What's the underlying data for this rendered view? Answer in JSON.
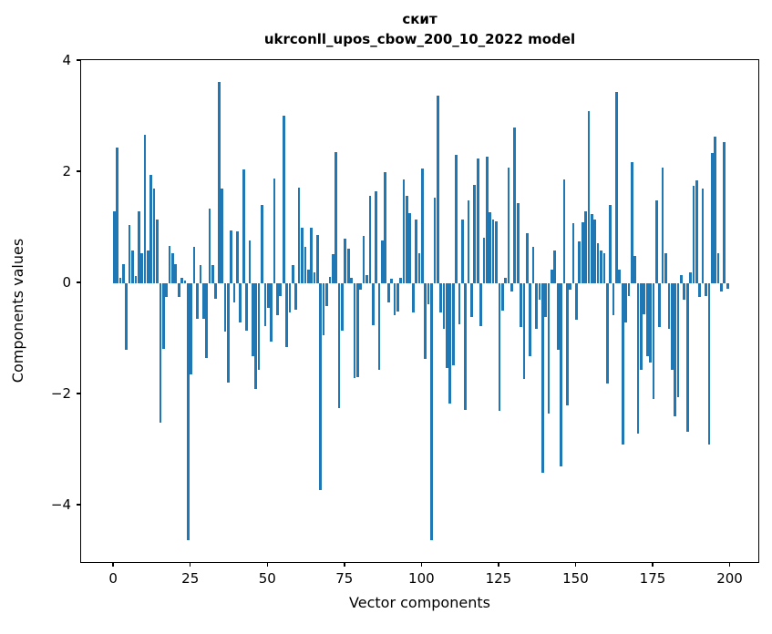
{
  "figure": {
    "title_line1": "скит",
    "title_line2": "ukrconll_upos_cbow_200_10_2022 model",
    "xlabel": "Vector components",
    "ylabel": "Components values"
  },
  "chart_data": {
    "type": "bar",
    "title": "скит\nukrconll_upos_cbow_200_10_2022 model",
    "xlabel": "Vector components",
    "ylabel": "Components values",
    "legend": "none",
    "grid": false,
    "bar_color": "#1f77b4",
    "bar_width_units": 0.8,
    "n_bars": 200,
    "xlim": [
      -10.7,
      209.6
    ],
    "ylim": [
      -5.05,
      4.02
    ],
    "xticks": {
      "values": [
        0,
        25,
        50,
        75,
        100,
        125,
        150,
        175,
        200
      ],
      "labels": [
        "0",
        "25",
        "50",
        "75",
        "100",
        "125",
        "150",
        "175",
        "200"
      ]
    },
    "yticks": {
      "values": [
        4,
        2,
        0,
        -2,
        -4
      ],
      "labels": [
        "4",
        "2",
        "0",
        "−2",
        "−4"
      ]
    },
    "values": [
      1.3,
      2.45,
      0.1,
      0.35,
      -1.2,
      1.05,
      0.6,
      0.13,
      1.3,
      0.55,
      2.67,
      0.6,
      1.95,
      1.7,
      1.15,
      -2.5,
      -1.18,
      -0.25,
      0.67,
      0.55,
      0.35,
      -0.25,
      0.1,
      0.05,
      -4.62,
      -1.64,
      0.65,
      -0.63,
      0.33,
      -0.63,
      -1.34,
      1.34,
      0.33,
      -0.27,
      3.63,
      1.7,
      -0.86,
      -1.78,
      0.96,
      -0.35,
      0.94,
      -0.7,
      2.05,
      -0.85,
      0.78,
      -1.31,
      -1.9,
      -1.55,
      1.42,
      -0.77,
      -0.44,
      -1.04,
      1.89,
      -0.57,
      -0.22,
      3.02,
      -1.15,
      -0.52,
      0.33,
      -0.48,
      1.72,
      1.0,
      0.65,
      0.25,
      1.0,
      0.2,
      0.87,
      -3.72,
      -0.93,
      -0.41,
      0.12,
      0.52,
      2.36,
      -2.24,
      -0.85,
      0.8,
      0.63,
      0.1,
      -1.71,
      -1.68,
      -0.12,
      0.86,
      0.15,
      1.57,
      -0.75,
      1.65,
      -1.55,
      0.77,
      2.0,
      -0.35,
      0.08,
      -0.57,
      -0.5,
      0.1,
      1.87,
      1.58,
      1.26,
      -0.52,
      1.15,
      0.55,
      2.07,
      -1.36,
      -0.38,
      -4.62,
      1.55,
      3.38,
      -0.52,
      -0.82,
      -1.52,
      -2.16,
      -1.48,
      2.32,
      -0.74,
      1.15,
      -2.28,
      1.5,
      -0.61,
      1.78,
      2.25,
      -0.77,
      0.82,
      2.28,
      1.28,
      1.15,
      1.12,
      -2.3,
      -0.49,
      0.1,
      2.08,
      -0.15,
      2.8,
      1.45,
      -0.79,
      -1.72,
      0.9,
      -1.31,
      0.66,
      -0.82,
      -0.3,
      -3.41,
      -0.6,
      -2.35,
      0.25,
      0.6,
      -1.2,
      -3.3,
      1.87,
      -2.19,
      -0.12,
      1.08,
      -0.66,
      0.75,
      1.1,
      1.3,
      3.1,
      1.25,
      1.15,
      0.72,
      0.6,
      0.55,
      -1.8,
      1.42,
      -0.57,
      3.45,
      0.25,
      -2.9,
      -0.71,
      -0.22,
      2.18,
      0.5,
      -2.7,
      -1.56,
      -0.55,
      -1.31,
      -1.42,
      -2.08,
      1.49,
      -0.79,
      2.08,
      0.55,
      -0.82,
      -1.56,
      -2.4,
      -2.05,
      0.15,
      -0.3,
      -2.68,
      0.2,
      1.75,
      1.85,
      -0.25,
      1.7,
      -0.22,
      -2.9,
      2.35,
      2.65,
      0.55,
      -0.15,
      2.55,
      -0.1
    ]
  }
}
